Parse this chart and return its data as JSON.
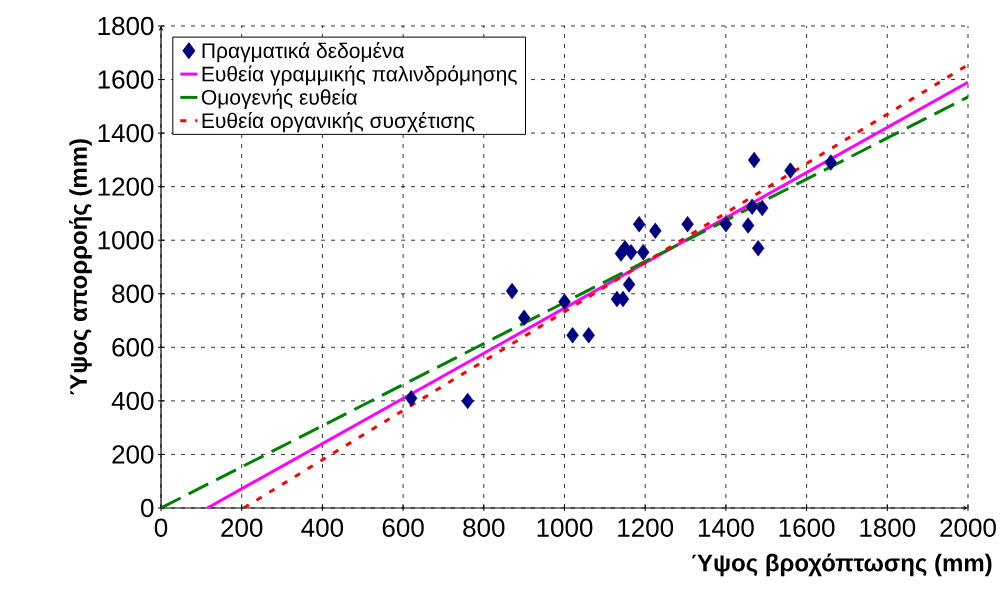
{
  "chart_data": {
    "type": "scatter",
    "xlabel": "Ύψος βροχόπτωσης (mm)",
    "ylabel": "Ύψος απορροής (mm)",
    "xlim": [
      0,
      2000
    ],
    "ylim": [
      0,
      1800
    ],
    "xticks": [
      0,
      200,
      400,
      600,
      800,
      1000,
      1200,
      1400,
      1600,
      1800,
      2000
    ],
    "yticks": [
      0,
      200,
      400,
      600,
      800,
      1000,
      1200,
      1400,
      1600,
      1800
    ],
    "grid": true,
    "legend": "top left",
    "series": [
      {
        "name": "Πραγματικά δεδομένα",
        "marker": "diamond",
        "color": "#000080",
        "x": [
          620,
          760,
          870,
          900,
          1000,
          1020,
          1060,
          1130,
          1145,
          1160,
          1140,
          1150,
          1165,
          1195,
          1185,
          1225,
          1305,
          1400,
          1455,
          1470,
          1465,
          1490,
          1480,
          1560,
          1660
        ],
        "values": [
          410,
          400,
          810,
          710,
          770,
          645,
          645,
          780,
          780,
          835,
          950,
          970,
          955,
          955,
          1060,
          1035,
          1060,
          1060,
          1055,
          1300,
          1125,
          1120,
          970,
          1260,
          1290
        ]
      },
      {
        "name": "Ευθεία γραμμικής παλινδρόμησης",
        "type": "line",
        "line_style": "solid",
        "color": "#ff00ff",
        "x": [
          115,
          2000
        ],
        "values": [
          0,
          1590
        ]
      },
      {
        "name": "Ομογενής ευθεία",
        "type": "line",
        "line_style": "dashed",
        "color": "#008000",
        "x": [
          0,
          2000
        ],
        "values": [
          0,
          1535
        ]
      },
      {
        "name": "Ευθεία οργανικής συσχέτισης",
        "type": "line",
        "line_style": "dotted",
        "color": "#ff0000",
        "x": [
          205,
          2000
        ],
        "values": [
          0,
          1655
        ]
      }
    ]
  }
}
